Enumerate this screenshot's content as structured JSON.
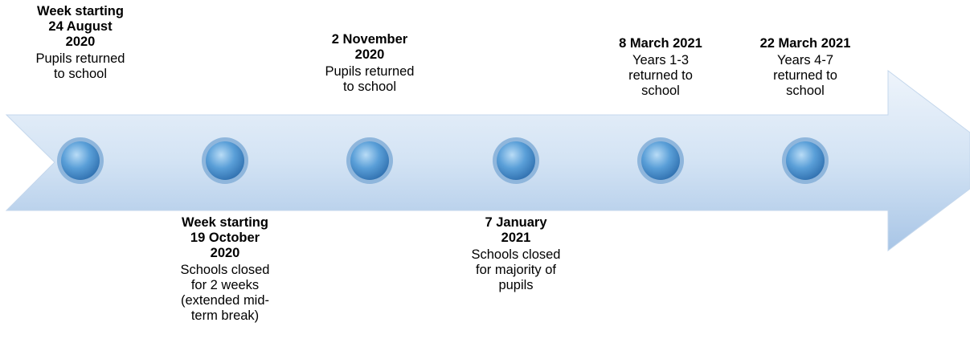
{
  "events": [
    {
      "title_lines": [
        "Week starting",
        "24 August",
        "2020"
      ],
      "description_lines": [
        "Pupils returned",
        "to school"
      ]
    },
    {
      "title_lines": [
        "Week starting",
        "19 October",
        "2020"
      ],
      "description_lines": [
        "Schools closed",
        "for 2 weeks",
        "(extended mid-",
        "term break)"
      ]
    },
    {
      "title_lines": [
        "2 November",
        "2020"
      ],
      "description_lines": [
        "Pupils returned",
        "to school"
      ]
    },
    {
      "title_lines": [
        "7 January",
        "2021"
      ],
      "description_lines": [
        "Schools closed",
        "for majority of",
        "pupils"
      ]
    },
    {
      "title_lines": [
        "8 March 2021"
      ],
      "description_lines": [
        "Years 1-3",
        "returned to",
        "school"
      ]
    },
    {
      "title_lines": [
        "22 March 2021"
      ],
      "description_lines": [
        "Years 4-7",
        "returned to",
        "school"
      ]
    }
  ]
}
